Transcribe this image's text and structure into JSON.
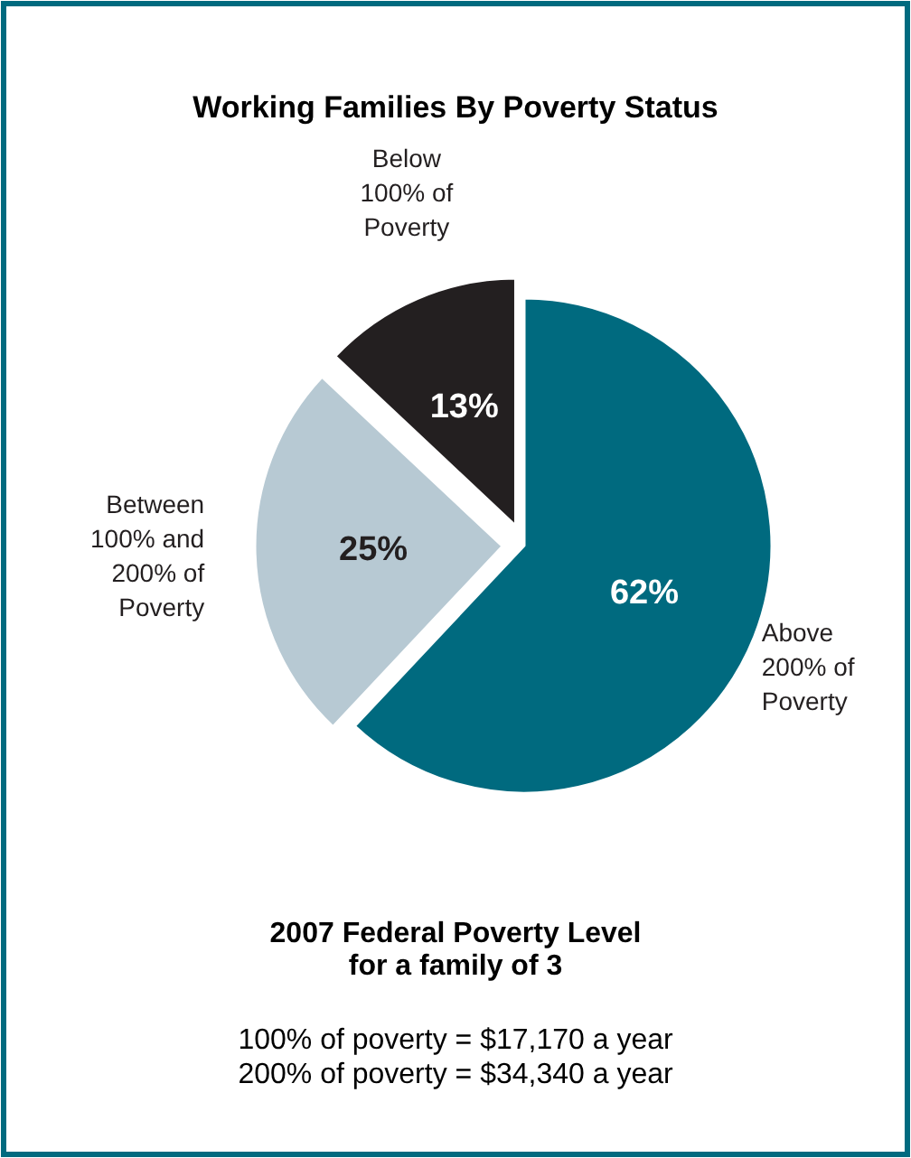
{
  "chart_data": {
    "type": "pie",
    "title": "Working Families By Poverty Status",
    "categories": [
      "Above\n200% of\nPoverty",
      "Between\n100% and\n200% of\nPoverty",
      "Below\n100% of\nPoverty"
    ],
    "values": [
      62,
      25,
      13
    ],
    "colors": [
      "#006a7f",
      "#b7c9d3",
      "#231f20"
    ],
    "value_labels": [
      "62%",
      "25%",
      "13%"
    ],
    "legend": false,
    "subtitle": "2007 Federal Poverty Level\nfor a family of 3",
    "annotations": [
      "100% of poverty = $17,170 a year",
      "200% of poverty = $34,340 a year"
    ]
  }
}
